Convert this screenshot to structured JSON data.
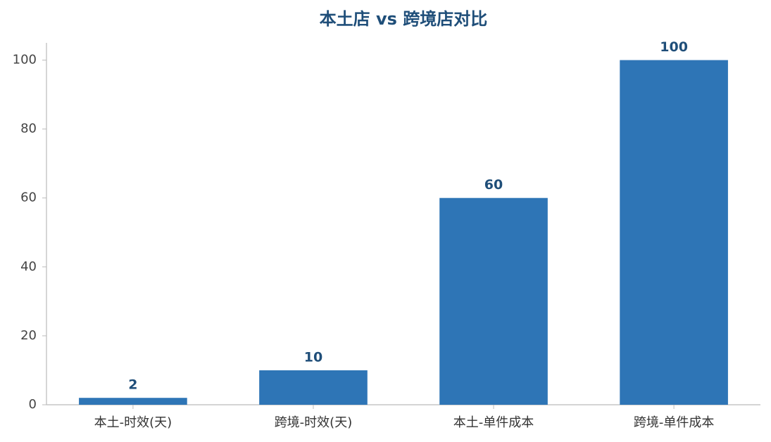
{
  "chart_data": {
    "type": "bar",
    "title": "本土店 vs 跨境店对比",
    "categories": [
      "本土-时效(天)",
      "跨境-时效(天)",
      "本土-单件成本",
      "跨境-单件成本"
    ],
    "values": [
      2,
      10,
      60,
      100
    ],
    "color": "#2e75b6",
    "ylim": [
      0,
      105
    ],
    "yticks": [
      0,
      20,
      40,
      60,
      80,
      100
    ],
    "grid": false
  }
}
